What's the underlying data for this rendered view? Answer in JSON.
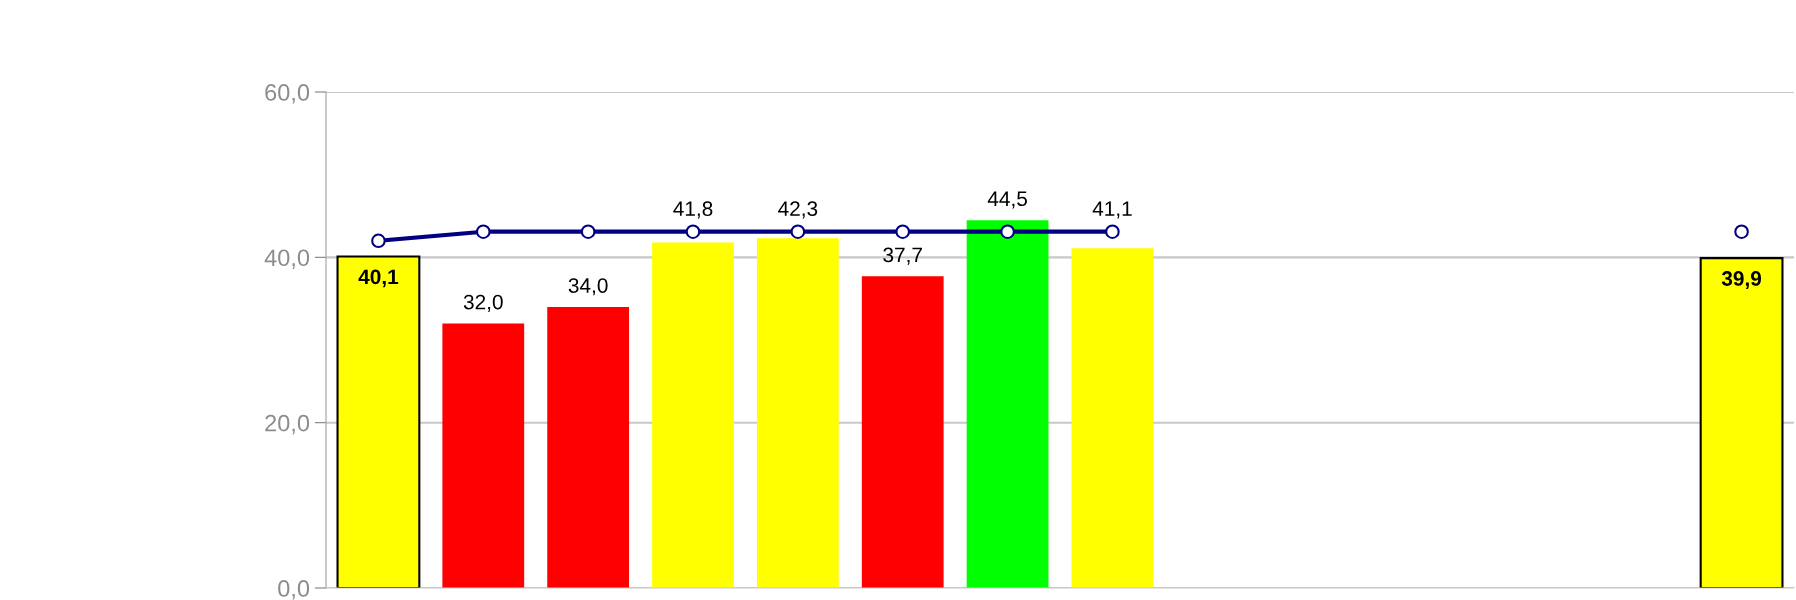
{
  "chart_data": {
    "type": "bar",
    "categories": [
      null,
      null,
      null,
      null,
      null,
      null,
      null,
      null,
      null,
      null,
      null,
      null,
      null,
      null
    ],
    "series": [
      {
        "colors": [
          "#ffff00",
          "#ff0000",
          "#ff0000",
          "#ffff00",
          "#ffff00",
          "#ff0000",
          "#00ff00",
          "#ffff00",
          null,
          null,
          null,
          null,
          null,
          "#ffff00"
        ],
        "values": [
          40.1,
          32.0,
          34.0,
          41.8,
          42.3,
          37.7,
          44.5,
          41.1,
          null,
          null,
          null,
          null,
          null,
          39.9
        ],
        "value_labels": [
          "40,1",
          "32,0",
          "34,0",
          "41,8",
          "42,3",
          "37,7",
          "44,5",
          "41,1",
          null,
          null,
          null,
          null,
          null,
          "39,9"
        ]
      },
      {
        "type": "line",
        "color": "#000080",
        "marker": "circle",
        "values": [
          42.0,
          43.1,
          43.1,
          43.1,
          43.1,
          43.1,
          43.1,
          43.1,
          null,
          null,
          null,
          null,
          null,
          43.1
        ]
      }
    ],
    "ylim": [
      0,
      60
    ],
    "yticks": [
      {
        "value": 0,
        "label": "0,0"
      },
      {
        "value": 20,
        "label": "20,0"
      },
      {
        "value": 40,
        "label": "40,0"
      },
      {
        "value": 60,
        "label": "60,0"
      }
    ],
    "grid": "y",
    "tick_labels": "y"
  }
}
